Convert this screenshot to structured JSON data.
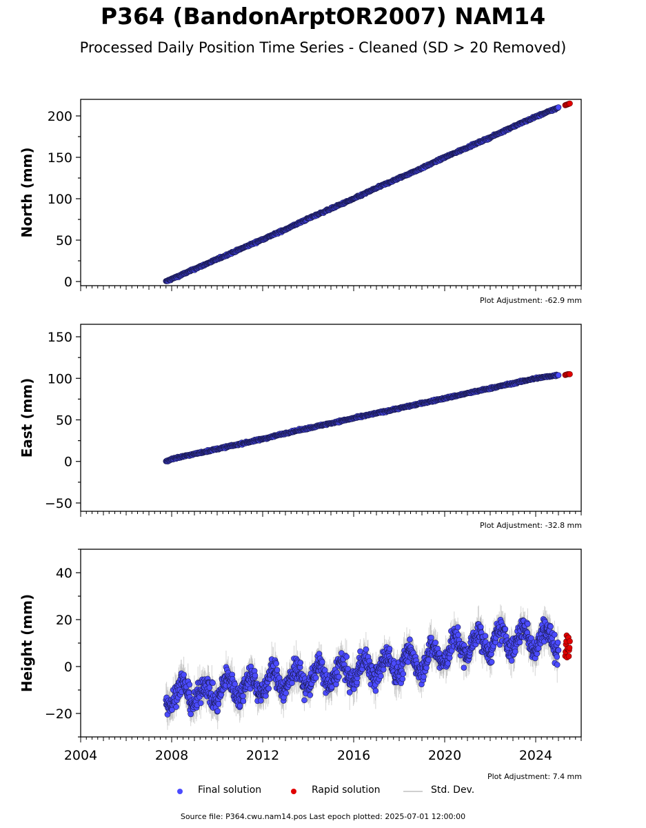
{
  "header": {
    "title": "P364 (BandonArptOR2007) NAM14",
    "subtitle": "Processed Daily Position Time Series - Cleaned (SD > 20 Removed)"
  },
  "colors": {
    "final": "#4b4bff",
    "final_edge": "#1a1a50",
    "rapid": "#e00000",
    "std": "#a9a9a9"
  },
  "chart_data": [
    {
      "type": "scatter",
      "ylabel": "North (mm)",
      "xlim": [
        2004,
        2026
      ],
      "ylim": [
        -5,
        220
      ],
      "yticks": [
        0,
        50,
        100,
        150,
        200
      ],
      "adjustment": "Plot Adjustment: -62.9 mm",
      "series": [
        {
          "name": "Final solution",
          "x": [
            2007.75,
            2008.0,
            2009.0,
            2010.0,
            2011.0,
            2012.0,
            2013.0,
            2014.0,
            2015.0,
            2016.0,
            2017.0,
            2018.0,
            2019.0,
            2020.0,
            2021.0,
            2022.0,
            2023.0,
            2024.0,
            2025.0
          ],
          "y": [
            0,
            3,
            15,
            27,
            39,
            51,
            63,
            76,
            88,
            100,
            113,
            125,
            137,
            150,
            162,
            174,
            187,
            199,
            210
          ]
        },
        {
          "name": "Rapid solution",
          "x": [
            2025.3,
            2025.4,
            2025.5
          ],
          "y": [
            213,
            214,
            215
          ]
        }
      ]
    },
    {
      "type": "scatter",
      "ylabel": "East (mm)",
      "xlim": [
        2004,
        2026
      ],
      "ylim": [
        -60,
        165
      ],
      "yticks": [
        -50,
        0,
        50,
        100,
        150
      ],
      "adjustment": "Plot Adjustment: -32.8 mm",
      "series": [
        {
          "name": "Final solution",
          "x": [
            2007.75,
            2008.0,
            2009.0,
            2010.0,
            2011.0,
            2012.0,
            2013.0,
            2014.0,
            2015.0,
            2016.0,
            2017.0,
            2018.0,
            2019.0,
            2020.0,
            2021.0,
            2022.0,
            2023.0,
            2024.0,
            2025.0
          ],
          "y": [
            0,
            3,
            9,
            15,
            21,
            27,
            34,
            40,
            46,
            52,
            58,
            64,
            70,
            76,
            82,
            88,
            94,
            100,
            104
          ]
        },
        {
          "name": "Rapid solution",
          "x": [
            2025.3,
            2025.4,
            2025.5
          ],
          "y": [
            104,
            105,
            105
          ]
        }
      ]
    },
    {
      "type": "scatter",
      "ylabel": "Height (mm)",
      "xlim": [
        2004,
        2026
      ],
      "ylim": [
        -30,
        50
      ],
      "yticks": [
        -20,
        0,
        20,
        40
      ],
      "xticks": [
        2004,
        2008,
        2012,
        2016,
        2020,
        2024
      ],
      "adjustment": "Plot Adjustment: 7.4 mm",
      "series": [
        {
          "name": "Final solution",
          "x": [
            2007.75,
            2008.5,
            2009.5,
            2010.5,
            2011.5,
            2012.5,
            2013.5,
            2014.5,
            2015.5,
            2016.5,
            2017.5,
            2018.5,
            2019.5,
            2020.5,
            2021.5,
            2022.5,
            2023.5,
            2024.5,
            2025.0
          ],
          "y": [
            -12,
            -11,
            -12,
            -9,
            -8,
            -6,
            -5,
            -4,
            -3,
            -1,
            0,
            2,
            4,
            8,
            10,
            11,
            12,
            12,
            11
          ]
        },
        {
          "name": "Rapid solution",
          "x": [
            2025.3,
            2025.4,
            2025.5
          ],
          "y": [
            6,
            9,
            11
          ]
        }
      ]
    }
  ],
  "legend": {
    "final": "Final solution",
    "rapid": "Rapid solution",
    "std": "Std. Dev."
  },
  "footer": {
    "source": "Source file: P364.cwu.nam14.pos  Last epoch plotted: 2025-07-01 12:00:00"
  }
}
